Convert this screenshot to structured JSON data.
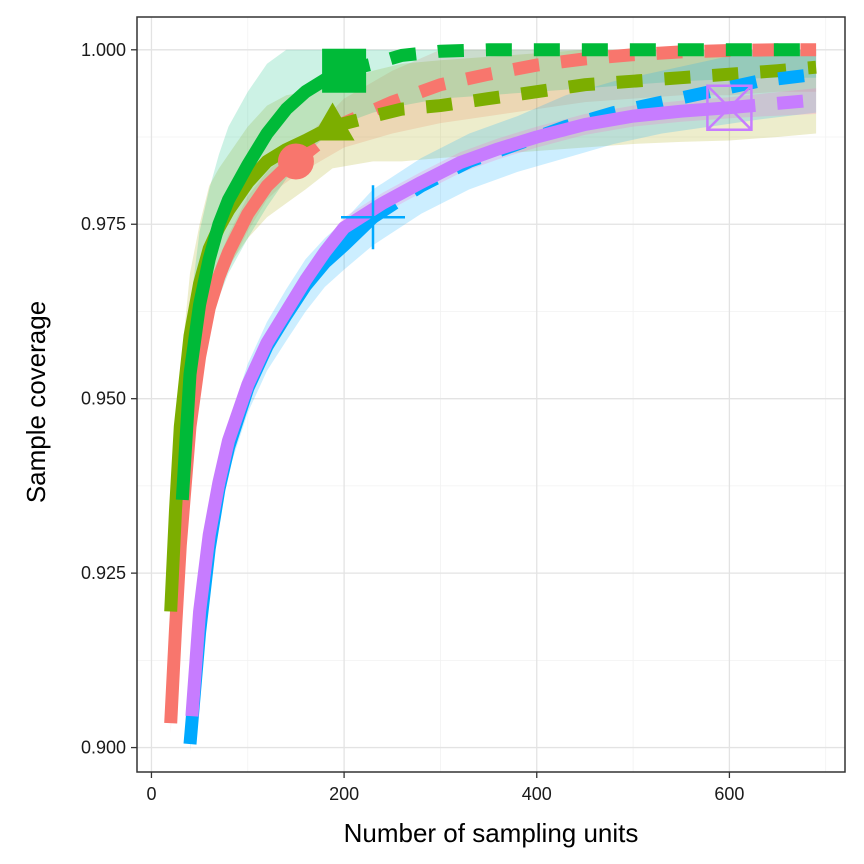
{
  "chart_data": {
    "type": "line",
    "xlabel": "Number of sampling units",
    "ylabel": "Sample coverage",
    "xlim": [
      -15,
      720
    ],
    "ylim": [
      0.8965,
      1.0047
    ],
    "x_ticks": [
      {
        "value": 0,
        "label": "0"
      },
      {
        "value": 200,
        "label": "200"
      },
      {
        "value": 400,
        "label": "400"
      },
      {
        "value": 600,
        "label": "600"
      }
    ],
    "y_ticks": [
      {
        "value": 0.9,
        "label": "0.900"
      },
      {
        "value": 0.925,
        "label": "0.925"
      },
      {
        "value": 0.95,
        "label": "0.950"
      },
      {
        "value": 0.975,
        "label": "0.975"
      },
      {
        "value": 1.0,
        "label": "1.000"
      }
    ],
    "grid": true,
    "legend": "none",
    "series": [
      {
        "color": "#F8766D",
        "band_color": "#F8766D",
        "marker": "circle",
        "observed": {
          "x": 150,
          "y": 0.984
        },
        "interp_x": [
          20,
          25,
          30,
          40,
          50,
          60,
          70,
          80,
          100,
          120,
          135,
          150
        ],
        "interp_y": [
          0.9035,
          0.917,
          0.929,
          0.946,
          0.956,
          0.963,
          0.9675,
          0.971,
          0.9765,
          0.9805,
          0.9825,
          0.984
        ],
        "interp_lo": [
          0.902,
          0.915,
          0.926,
          0.943,
          0.953,
          0.96,
          0.965,
          0.9685,
          0.974,
          0.9785,
          0.9805,
          0.982
        ],
        "interp_hi": [
          0.905,
          0.919,
          0.932,
          0.949,
          0.959,
          0.966,
          0.97,
          0.9735,
          0.979,
          0.9825,
          0.9845,
          0.986
        ],
        "extrap_x": [
          150,
          200,
          250,
          300,
          350,
          400,
          450,
          500,
          550,
          600,
          650,
          690
        ],
        "extrap_y": [
          0.984,
          0.9895,
          0.9925,
          0.995,
          0.9965,
          0.9978,
          0.9987,
          0.9993,
          0.9997,
          0.9999,
          1.0,
          1.0
        ],
        "extrap_lo": [
          0.982,
          0.986,
          0.988,
          0.9895,
          0.9905,
          0.9915,
          0.9925,
          0.993,
          0.9935,
          0.9935,
          0.994,
          0.994
        ],
        "extrap_hi": [
          0.986,
          0.993,
          0.997,
          1.0,
          1.0,
          1.0,
          1.0,
          1.0,
          1.0,
          1.0,
          1.0,
          1.0
        ]
      },
      {
        "color": "#7CAE00",
        "band_color": "#A3A500",
        "marker": "triangle",
        "observed": {
          "x": 188,
          "y": 0.989
        },
        "interp_x": [
          20,
          25,
          30,
          40,
          50,
          60,
          70,
          80,
          100,
          120,
          140,
          160,
          188
        ],
        "interp_y": [
          0.9195,
          0.934,
          0.946,
          0.959,
          0.9665,
          0.9715,
          0.9745,
          0.977,
          0.981,
          0.984,
          0.9857,
          0.987,
          0.989
        ],
        "interp_lo": [
          0.914,
          0.927,
          0.938,
          0.95,
          0.958,
          0.9625,
          0.966,
          0.969,
          0.973,
          0.976,
          0.978,
          0.98,
          0.983
        ],
        "interp_hi": [
          0.925,
          0.941,
          0.954,
          0.968,
          0.975,
          0.9805,
          0.983,
          0.985,
          0.989,
          0.992,
          0.9935,
          0.994,
          0.995
        ],
        "extrap_x": [
          188,
          230,
          260,
          300,
          350,
          400,
          450,
          500,
          550,
          600,
          650,
          690
        ],
        "extrap_y": [
          0.989,
          0.9905,
          0.9915,
          0.992,
          0.993,
          0.994,
          0.995,
          0.9955,
          0.996,
          0.9965,
          0.997,
          0.9975
        ],
        "extrap_lo": [
          0.983,
          0.984,
          0.984,
          0.9845,
          0.985,
          0.9855,
          0.986,
          0.9865,
          0.9868,
          0.987,
          0.9875,
          0.988
        ],
        "extrap_hi": [
          0.995,
          0.997,
          0.998,
          0.9985,
          0.999,
          0.9995,
          1.0,
          1.0,
          1.0,
          1.0,
          1.0,
          1.0
        ]
      },
      {
        "color": "#00BA38",
        "band_color": "#00BF7D",
        "marker": "square",
        "observed": {
          "x": 200,
          "y": 0.997
        },
        "interp_x": [
          32,
          40,
          50,
          60,
          70,
          80,
          100,
          120,
          140,
          160,
          180,
          200
        ],
        "interp_y": [
          0.9355,
          0.9535,
          0.9635,
          0.97,
          0.975,
          0.9785,
          0.9835,
          0.988,
          0.9915,
          0.994,
          0.9957,
          0.997
        ],
        "interp_lo": [
          0.927,
          0.944,
          0.953,
          0.9595,
          0.9645,
          0.968,
          0.973,
          0.9775,
          0.9815,
          0.985,
          0.9875,
          0.9895
        ],
        "interp_hi": [
          0.944,
          0.963,
          0.974,
          0.98,
          0.985,
          0.989,
          0.994,
          0.998,
          1.0,
          1.0,
          1.0,
          1.0
        ],
        "extrap_x": [
          200,
          230,
          260,
          300,
          350,
          400,
          450,
          500,
          550,
          600,
          650,
          690
        ],
        "extrap_y": [
          0.997,
          0.998,
          0.9992,
          0.9998,
          1.0,
          1.0,
          1.0,
          1.0,
          1.0,
          1.0,
          1.0,
          1.0
        ],
        "extrap_lo": [
          0.9895,
          0.991,
          0.992,
          0.993,
          0.9935,
          0.994,
          0.9945,
          0.995,
          0.9955,
          0.9958,
          0.996,
          0.996
        ],
        "extrap_hi": [
          1.0,
          1.0,
          1.0,
          1.0,
          1.0,
          1.0,
          1.0,
          1.0,
          1.0,
          1.0,
          1.0,
          1.0
        ]
      },
      {
        "color": "#00A9FF",
        "band_color": "#00A9FF",
        "marker": "plus",
        "observed": {
          "x": 230,
          "y": 0.976
        },
        "interp_x": [
          40,
          50,
          60,
          70,
          80,
          100,
          120,
          140,
          160,
          180,
          200,
          230
        ],
        "interp_y": [
          0.9005,
          0.9165,
          0.9285,
          0.937,
          0.943,
          0.9515,
          0.9575,
          0.962,
          0.9662,
          0.9695,
          0.972,
          0.976
        ],
        "interp_lo": [
          0.8995,
          0.9145,
          0.926,
          0.934,
          0.9395,
          0.948,
          0.954,
          0.9583,
          0.9625,
          0.966,
          0.9685,
          0.972
        ],
        "interp_hi": [
          0.9015,
          0.9185,
          0.931,
          0.94,
          0.9465,
          0.955,
          0.961,
          0.9657,
          0.97,
          0.973,
          0.9755,
          0.98
        ],
        "extrap_x": [
          230,
          280,
          330,
          380,
          430,
          480,
          530,
          580,
          630,
          690
        ],
        "extrap_y": [
          0.976,
          0.9805,
          0.984,
          0.9865,
          0.989,
          0.991,
          0.9925,
          0.994,
          0.9955,
          0.9965
        ],
        "extrap_lo": [
          0.972,
          0.9765,
          0.98,
          0.9825,
          0.9845,
          0.9865,
          0.988,
          0.989,
          0.99,
          0.991
        ],
        "extrap_hi": [
          0.98,
          0.9845,
          0.988,
          0.9905,
          0.9935,
          0.9955,
          0.997,
          0.9985,
          1.0,
          1.0
        ]
      },
      {
        "color": "#C77CFF",
        "band_color": "#FF61C3",
        "marker": "boxed-x",
        "observed": {
          "x": 600,
          "y": 0.9917
        },
        "interp_x": [
          42,
          50,
          60,
          70,
          80,
          100,
          120,
          140,
          160,
          180,
          200,
          240,
          280,
          320,
          360,
          400,
          450,
          500,
          550,
          600
        ],
        "interp_y": [
          0.9045,
          0.9195,
          0.9305,
          0.938,
          0.944,
          0.952,
          0.958,
          0.9625,
          0.967,
          0.971,
          0.9745,
          0.978,
          0.981,
          0.9838,
          0.9858,
          0.9875,
          0.9893,
          0.9905,
          0.9912,
          0.9917
        ],
        "interp_lo": [
          0.9035,
          0.918,
          0.929,
          0.9365,
          0.9425,
          0.9505,
          0.9565,
          0.961,
          0.9655,
          0.9695,
          0.973,
          0.9765,
          0.9795,
          0.9823,
          0.9843,
          0.986,
          0.9878,
          0.989,
          0.9897,
          0.9902
        ],
        "interp_hi": [
          0.9055,
          0.921,
          0.932,
          0.9395,
          0.9455,
          0.9535,
          0.9595,
          0.964,
          0.9685,
          0.9725,
          0.976,
          0.9795,
          0.9825,
          0.9853,
          0.9873,
          0.989,
          0.9908,
          0.992,
          0.9927,
          0.9932
        ],
        "extrap_x": [
          600,
          640,
          690
        ],
        "extrap_y": [
          0.9917,
          0.9922,
          0.9928
        ],
        "extrap_lo": [
          0.9902,
          0.9905,
          0.9908
        ],
        "extrap_hi": [
          0.9932,
          0.9938,
          0.9945
        ]
      }
    ]
  }
}
